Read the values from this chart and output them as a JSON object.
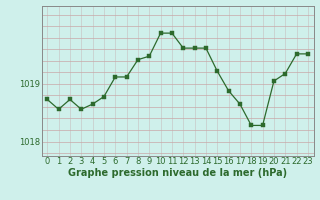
{
  "x": [
    0,
    1,
    2,
    3,
    4,
    5,
    6,
    7,
    8,
    9,
    10,
    11,
    12,
    13,
    14,
    15,
    16,
    17,
    18,
    19,
    20,
    21,
    22,
    23
  ],
  "y": [
    1018.73,
    1018.56,
    1018.73,
    1018.56,
    1018.65,
    1018.78,
    1019.12,
    1019.12,
    1019.42,
    1019.48,
    1019.88,
    1019.88,
    1019.62,
    1019.62,
    1019.62,
    1019.22,
    1018.88,
    1018.65,
    1018.28,
    1018.28,
    1019.05,
    1019.18,
    1019.52,
    1019.52
  ],
  "line_color": "#2d6a2d",
  "marker_color": "#2d6a2d",
  "bg_color": "#cff0eb",
  "grid_color_v": "#c8c8c8",
  "grid_color_h": "#c8a8a8",
  "border_color": "#888888",
  "ylabel_ticks": [
    1018,
    1019
  ],
  "xlabel": "Graphe pression niveau de la mer (hPa)",
  "ylim": [
    1017.75,
    1020.35
  ],
  "xlim": [
    -0.5,
    23.5
  ],
  "xlabel_fontsize": 7.0,
  "tick_fontsize": 6.0
}
